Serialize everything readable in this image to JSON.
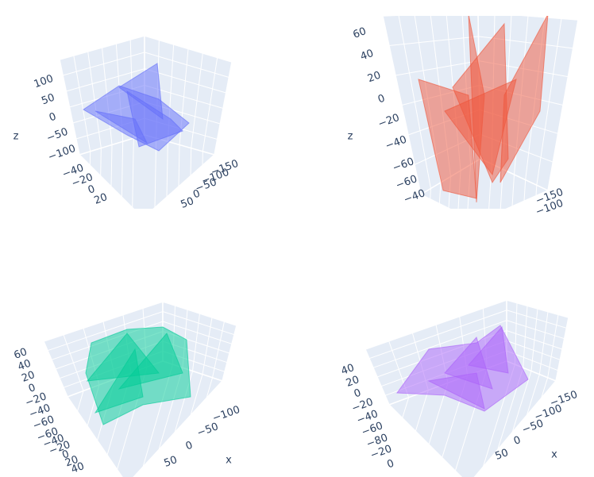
{
  "chart_data": [
    {
      "type": "mesh3d",
      "color": "#636efa",
      "ztitle": "z",
      "zticks": [
        {
          "value": 100,
          "label": "100"
        },
        {
          "value": 50,
          "label": "50"
        },
        {
          "value": 0,
          "label": "0"
        },
        {
          "value": -50,
          "label": "−50"
        },
        {
          "value": -100,
          "label": "−100"
        }
      ],
      "yticks": [
        {
          "value": -40,
          "label": "−40"
        },
        {
          "value": -20,
          "label": "−20"
        },
        {
          "value": 0,
          "label": "0"
        },
        {
          "value": 20,
          "label": "20"
        }
      ],
      "xticks": [
        {
          "value": -150,
          "label": "−150"
        },
        {
          "value": -100,
          "label": "−100"
        },
        {
          "value": -50,
          "label": "−50"
        },
        {
          "value": 0,
          "label": "0"
        },
        {
          "value": 50,
          "label": "50"
        }
      ]
    },
    {
      "type": "mesh3d",
      "color": "#ef553b",
      "ztitle": "z",
      "zticks": [
        {
          "value": 60,
          "label": "60"
        },
        {
          "value": 40,
          "label": "40"
        },
        {
          "value": 20,
          "label": "20"
        },
        {
          "value": 0,
          "label": "0"
        },
        {
          "value": -20,
          "label": "−20"
        },
        {
          "value": -40,
          "label": "−40"
        },
        {
          "value": -60,
          "label": "−60"
        }
      ],
      "yticks": [
        {
          "value": -60,
          "label": "−60"
        },
        {
          "value": -40,
          "label": "−40"
        }
      ],
      "xticks": [
        {
          "value": -150,
          "label": "−150"
        },
        {
          "value": -100,
          "label": "−100"
        }
      ]
    },
    {
      "type": "mesh3d",
      "color": "#00cc96",
      "xtitle": "x",
      "zticks": [
        {
          "value": 60,
          "label": "60"
        },
        {
          "value": 40,
          "label": "40"
        },
        {
          "value": 20,
          "label": "20"
        },
        {
          "value": 0,
          "label": "0"
        },
        {
          "value": -20,
          "label": "−20"
        },
        {
          "value": -40,
          "label": "−40"
        },
        {
          "value": -60,
          "label": "−60"
        }
      ],
      "yticks": [
        {
          "value": -60,
          "label": "−60"
        },
        {
          "value": -40,
          "label": "−40"
        },
        {
          "value": -20,
          "label": "−20"
        },
        {
          "value": 0,
          "label": "0"
        },
        {
          "value": 20,
          "label": "20"
        },
        {
          "value": 40,
          "label": "40"
        }
      ],
      "xticks": [
        {
          "value": -100,
          "label": "−100"
        },
        {
          "value": -50,
          "label": "−50"
        },
        {
          "value": 0,
          "label": "0"
        },
        {
          "value": 50,
          "label": "50"
        }
      ]
    },
    {
      "type": "mesh3d",
      "color": "#ab63fa",
      "xtitle": "x",
      "zticks": [
        {
          "value": 40,
          "label": "40"
        },
        {
          "value": 20,
          "label": "20"
        },
        {
          "value": 0,
          "label": "0"
        },
        {
          "value": -20,
          "label": "−20"
        },
        {
          "value": -40,
          "label": "−40"
        },
        {
          "value": -60,
          "label": "−60"
        },
        {
          "value": -80,
          "label": "−80"
        }
      ],
      "yticks": [
        {
          "value": -20,
          "label": "−20"
        },
        {
          "value": 0,
          "label": "0"
        }
      ],
      "xticks": [
        {
          "value": -150,
          "label": "−150"
        },
        {
          "value": -100,
          "label": "−100"
        },
        {
          "value": -50,
          "label": "−50"
        },
        {
          "value": 0,
          "label": "0"
        },
        {
          "value": 50,
          "label": "50"
        }
      ]
    }
  ]
}
